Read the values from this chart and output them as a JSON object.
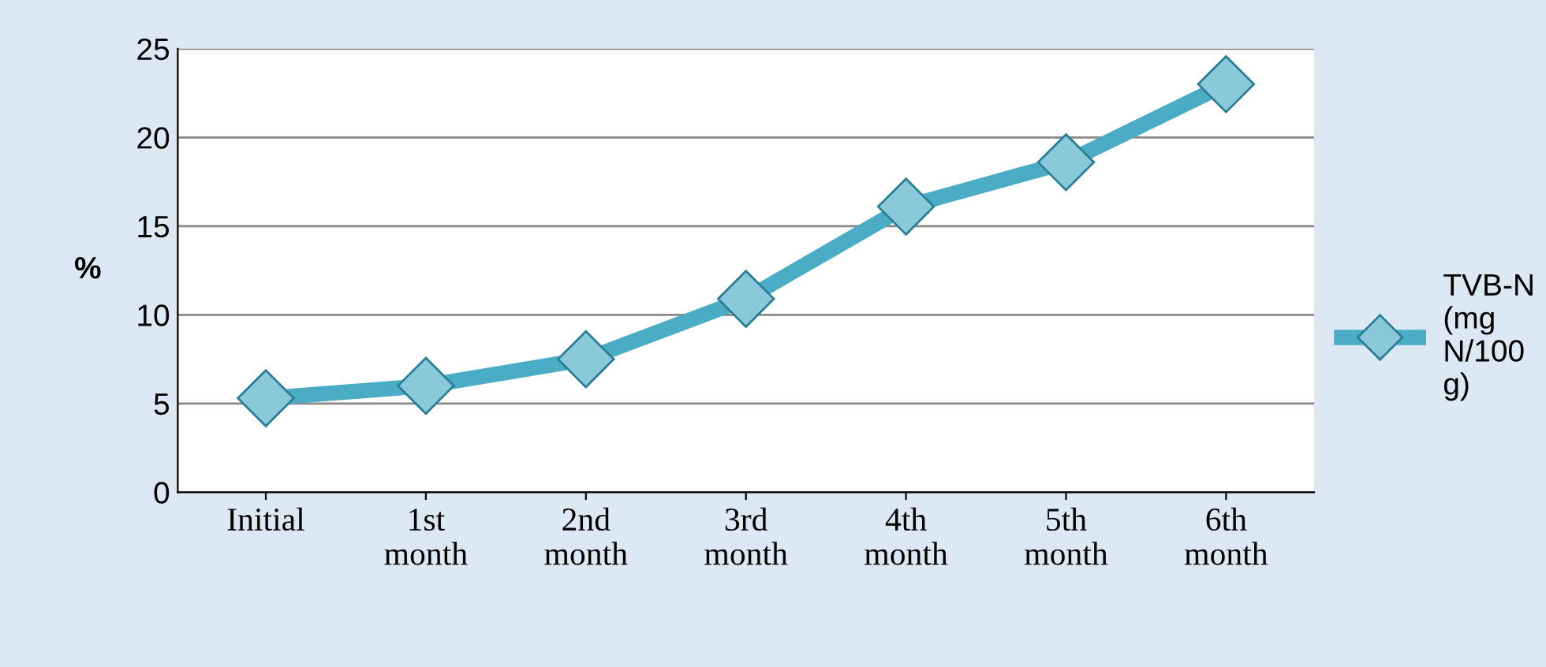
{
  "chart_data": {
    "type": "line",
    "ylabel": "%",
    "categories": [
      "Initial",
      "1st month",
      "2nd month",
      "3rd month",
      "4th month",
      "5th month",
      "6th month"
    ],
    "series": [
      {
        "name": "TVB-N (mg N/100 g)",
        "color": "#4bacc6",
        "values": [
          5.3,
          6.0,
          7.5,
          10.9,
          16.1,
          18.6,
          23.0
        ]
      }
    ],
    "ylim": [
      0,
      25
    ],
    "yticks": [
      0,
      5,
      10,
      15,
      20,
      25
    ],
    "grid": "y",
    "legend": "right",
    "marker": "diamond",
    "line_style": "solid"
  }
}
